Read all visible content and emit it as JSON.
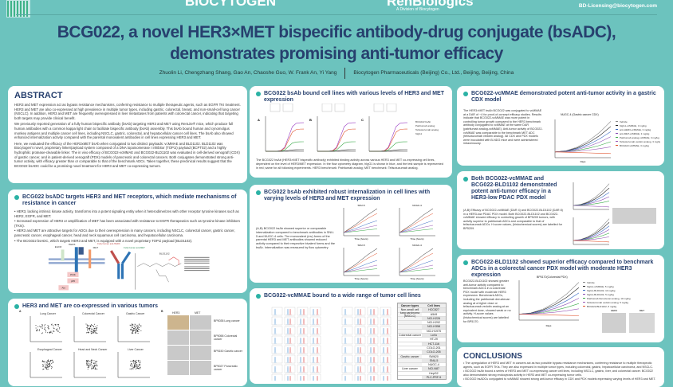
{
  "header": {
    "logo_left": "BIOCYTOGEN",
    "logo_right": "RenBiologics",
    "logo_right_sub": "A Division of Biocytogen",
    "email": "BD-Licensing@biocytogen.com",
    "title": "BCG022, a novel HER3×MET bispecific antibody-drug conjugate (bsADC), demonstrates promising anti-tumor efficacy",
    "authors": "Zhuolin Li, Chengzhang Shang, Gao An, Chaoshe Guo, W. Frank An, Yi Yang",
    "affiliation": "Biocytogen Pharmaceuticals (Beijing) Co., Ltd., Beijing, Beijing, China"
  },
  "abstract": {
    "heading": "ABSTRACT",
    "paragraphs": [
      "HER3 and MET expression act as bypass resistance mechanisms, conferring resistance to multiple therapeutic agents, such as EGFR TKI treatment. HER3 and MET are also co-expressed at high prevalence in multiple tumor types, including gastric, colorectal, breast, and non-small-cell lung cancer (NSCLC). In addition, HER3 and MET are frequently overexpressed in liver metastases from patients with colorectal cancer, indicating that targeting both targets may provide clinical benefit.",
      "We previously reported generation of a fully human bispecific antibody (bsAb) targeting HER3 and MET using RenLite® mice, which produce full human antibodies with a common kappa light chain to facilitate bispecific antibody (bsAb) assembly. This bsAb bound human and cynomolgus monkey antigens and multiple cancer cell lines, including NSCLC, gastric, colorectal, and hepatocellular cancer cell lines. The bsAb also showed enhanced internalization activity compared with the parental monovalent antibodies in cell lines expressing HER3 and MET.",
      "Here, we evaluated the efficacy of the HER3xMET bsAb when conjugated to two distinct payloads: vcMMAE and BLD1102. BLD1102 was Biocytogen's novel, proprietary linker/payload system composed of a DNA topoisomerase I inhibitor (TOP1i) payload (BCPT02) and a highly hydrophilic protease-cleavable linker. The in vivo efficacy of BCG022-vcMMAE and BCG022-BLD1102 was evaluated in cell-derived xenograft (CDX) of gastric cancer, and in patient-derived xenograft (PDX) models of pancreatic and colorectal cancers. Both conjugates demonstrated strong anti-tumor activity, with efficacy greater than or comparable to that of the benchmark ADCs. Taken together, these preclinical results suggest that the BCG022 bsADC could be a promising novel treatment for HER3 and MET co-expressing tumors."
    ]
  },
  "targets": {
    "heading": "BCG022 bsADC targets HER3 and MET receptors, which mediate mechanisms of resistance in cancer",
    "bullets": [
      "HER3, lacking intrinsic kinase activity, transforms into a potent signaling entity when it heterodimerizes with other receptor tyrosine kinases such as HER2, EGFR, and MET.",
      "Increased expression of HER3 or amplification of MET has been associated with resistance to EGFR therapeutics such as tyrosine kinase inhibitors (TKIs).",
      "HER3 and MET are attractive targets for ADCs due to their overexpression in many cancers, including NSCLC, colorectal cancer, gastric cancer, pancreatic cancer, esophageal cancer, head and neck squamous cell carcinoma, and hepatocellular carcinoma.",
      "The BCG022 bsADC, which targets HER3 and MET, is equipped with a novel proprietary TOP1i payload (BLD1102)."
    ],
    "diagram_labels": [
      "HER3",
      "MET",
      "EGFR",
      "PI3K",
      "p85",
      "Akt"
    ],
    "antibody_labels": [
      "Fully human anti-HER3",
      "Fully human anti-MET"
    ],
    "molecule_label": "BLD1102"
  },
  "coexp": {
    "heading": "HER3 and MET are co-expressed in various tumors",
    "panel_a": "A",
    "panel_b": "B",
    "plots": [
      "Lung Cancer",
      "Colorectal Cancer",
      "Gastric Cancer",
      "Esophageal Cancer",
      "Head and Neck Cancer",
      "Liver Cancer"
    ],
    "ihc_cols": [
      "HER3",
      "MET"
    ],
    "ihc_rows": [
      "BP5038 Lung cancer",
      "BP5058 Colorectal cancer",
      "BP5150 Gastric cancer",
      "BP5027 Pancreatic cancer"
    ]
  },
  "binding": {
    "heading": "BCG022 bsAb bound cell lines with various levels of  HER3 and MET expression",
    "panels": [
      "A",
      "B",
      "C"
    ],
    "legend": [
      "BCG022 bsAb",
      "Patritumab analog",
      "Telisotuzumab analog",
      "hIgG1"
    ],
    "caption": "The BCG022 bsAb (HER3×MET bispecific antibody) exhibited binding activity across various HER3 and MET co-expressing cell lines, dependent on the level of HER3/MET expression. In the flow cytometry diagram, hIgG1 is shown in blue, and the test sample is represented in red; same for all following experiments. HER3 benchmark: Patritumab analog; MET benchmark: Telisotuzumab analog."
  },
  "internalization": {
    "heading": "BCG022 bsAb exhibited robust internalization in cell lines with varying levels of HER3 and MET expression",
    "caption": "(A,B) BCG022 bsAb showed superior or comparable internalization compared to benchmark antibodies in SNU-5 and NUGC-4 cells. The monovalent (mv) forms of the parental HER3 and MET antibodies showed reduced activity compared to their respective bivalent forms and the bsAb. Internalization was measured by flow cytometry.",
    "charts": [
      "SNU-5",
      "NUGC-4",
      "SNU-5",
      "NUGC-4"
    ],
    "xlabel": "Time (hours)"
  },
  "wide": {
    "heading": "BCG022-vcMMAE bound to a wide range of tumor cell lines",
    "table_headers": [
      "Cancer types",
      "Cell lines"
    ],
    "table": [
      [
        "Non-small cell lung carcinoma (NSCLC)",
        "HCC827"
      ],
      [
        "",
        "A549"
      ],
      [
        "",
        "NCI-H226"
      ],
      [
        "",
        "NCI-H292"
      ],
      [
        "",
        "NCI-H358"
      ],
      [
        "",
        "NCI-H1975"
      ],
      [
        "Colorectal cancer",
        "LoVo"
      ],
      [
        "",
        "HT-29"
      ],
      [
        "",
        "HCT-116"
      ],
      [
        "",
        "COLO-201"
      ],
      [
        "",
        "COLO-205"
      ],
      [
        "Gastric cancer",
        "SW620"
      ],
      [
        "",
        "SNU-5"
      ],
      [
        "",
        "NUGC-4"
      ],
      [
        "Liver cancer",
        "NCI-N87"
      ],
      [
        "",
        "HepG2"
      ],
      [
        "",
        "PLC-PRF-5"
      ]
    ]
  },
  "gastric": {
    "heading": "BCG022-vcMMAE demonstrated potent anti-tumor activity in a gastric CDX model",
    "chart_title": "NUGC-4 (Gastric cancer CDX)",
    "xlabel": "Days",
    "text": "The HER3×MET bsAb BCG022 was conjugated to vcMMAE at a DAR of ~4 for proof-of-concept efficacy studies. Results indicate that BCG022-vcMMAE was more potent in controlling tumor growth compared to the HER3 benchmark antibody conjugated to vcMMAE at the same DAR (patritumab analog-vcMMAE). Anti-tumor activity of BCG022-vcMMAE was comparable to the benchmark MET ADC (telisotuzumab vedotin analog). All CDX and PDX models were inoculated with B-NDG mice and were administered intravenously.",
    "legend": [
      "Vehicle",
      "hIgG1-vcMMAE, 3 mg/kg",
      "anti-HER3-vcMMAE, 3 mg/kg",
      "anti-MET-vcMMAE, 3 mg/kg",
      "Patritumab analog-vcMMAE, 3 mg/kg",
      "Telisotuzumab vedotin analog, 3 mg/kg",
      "BCG022-vcMMAE, 3 mg/kg"
    ]
  },
  "pdac": {
    "heading": "Both BCG022-vcMMAE and BCG022-BLD1102 demonstrated potent anti-tumor efficacy in a HER3-low PDAC PDX model",
    "text": "(A,B) Efficacy of BCG022-vcMMAE (DAR 4) and BCG022-BLD1102 (DAR 8) in a HER3-low PDAC PDX model. Both BCG022-BLD1102 and BCG022-vcMMAE showed efficacy in controlling growth of BP5209 tumors, with activity superior to patritumab ADCs and comparable to that of telisotuzumab ADCs. H-score values, (histochemical scores) are labelled for BP5209."
  },
  "crc": {
    "heading": "BCG022-BLD1102 showed superior efficacy compared to benchmark ADCs in a colorectal cancer PDX model with moderate HER3 expression",
    "chart_title": "BP5170(Colorectal PDX)",
    "xlabel": "Days",
    "text": "BCG022-BLD1102 showed greater anti-tumor activity compared to benchmark ADCs in a colorectal PDX model with moderate HER3 expression. Benchmark ADCs, including the patritumab deruxtecan analog at a higher dose or telisotuzumab vedotin analog at an equivalent dose, showed weak or no activity. H-score values (histochemical scores) are labelled for BP5170.",
    "legend": [
      "Vehicle",
      "hIgG1-vcMMAE, 5 mg/kg",
      "hIgG1-BLD1102, 10 mg/kg",
      "hIgG1-BLD1102, 5 mg/kg",
      "Patritumab Deruxtecan analog, 10 mg/kg",
      "Telisotuzumab vedotin analog, 5 mg/kg",
      "BCG022-BLD1102, 5 mg/kg"
    ],
    "ihc": [
      "HER3",
      "MET"
    ]
  },
  "conclusions": {
    "heading": "CONCLUSIONS",
    "bullets": [
      "The upregulation of HER3 and MET in cancers act as two possible bypass resistance mechanisms, conferring resistance to multiple therapeutic agents, such as EGFR TKIs. They are also expressed in multiple tumor types, including colorectal, gastric, hepatocellular carcinoma, and NSCLC.",
      "BCG022 bsAb bound a series of HER3 and MET co-expressing cancer cell lines, including NSCLC, gastric, liver, and colorectal cancer. BCG022 also demonstrated strong endocytosis activity in HER3 and MET co-expressing tumor cells.",
      "BCG022 bsADCs conjugated to vcMMAE showed strong anti-tumor efficacy in CDX and PDX models expressing varying levels of HER3 and MET."
    ]
  },
  "colors": {
    "background": "#6cc3be",
    "title": "#27406e",
    "accent": "#2bb2a5"
  }
}
